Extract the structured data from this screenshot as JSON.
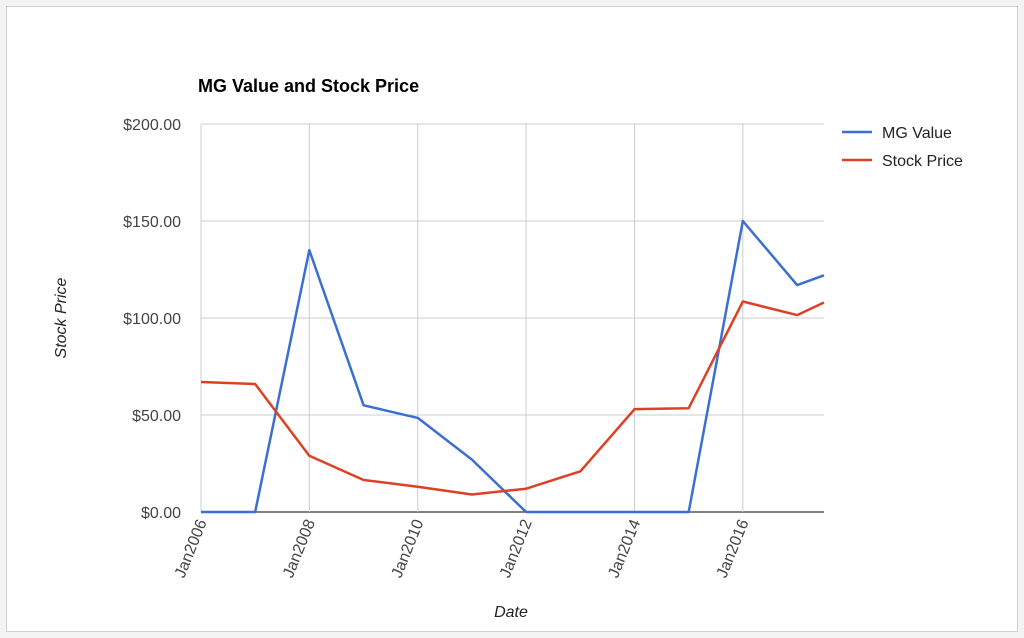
{
  "chart_data": {
    "type": "line",
    "title": "MG Value and Stock Price",
    "xlabel": "Date",
    "ylabel": "Stock Price",
    "x": [
      "2006-01",
      "2007-01",
      "2008-01",
      "2009-01",
      "2010-01",
      "2011-01",
      "2012-01",
      "2013-01",
      "2014-01",
      "2015-01",
      "2016-01",
      "2017-01",
      "2017-07"
    ],
    "xticks": [
      "Jan2006",
      "Jan2008",
      "Jan2010",
      "Jan2012",
      "Jan2014",
      "Jan2016"
    ],
    "yticks": [
      "$0.00",
      "$50.00",
      "$100.00",
      "$150.00",
      "$200.00"
    ],
    "ylim": [
      0,
      200
    ],
    "grid": true,
    "legend_position": "top-right",
    "series": [
      {
        "name": "MG Value",
        "color": "#3b6fd0",
        "values": [
          0,
          0,
          135,
          55,
          48.5,
          27,
          0,
          0,
          0,
          0,
          150,
          117,
          122
        ]
      },
      {
        "name": "Stock Price",
        "color": "#dd4125",
        "values": [
          67,
          66,
          29,
          16.5,
          13,
          9,
          12,
          21,
          53,
          53.5,
          108.5,
          101.5,
          108
        ]
      }
    ]
  }
}
